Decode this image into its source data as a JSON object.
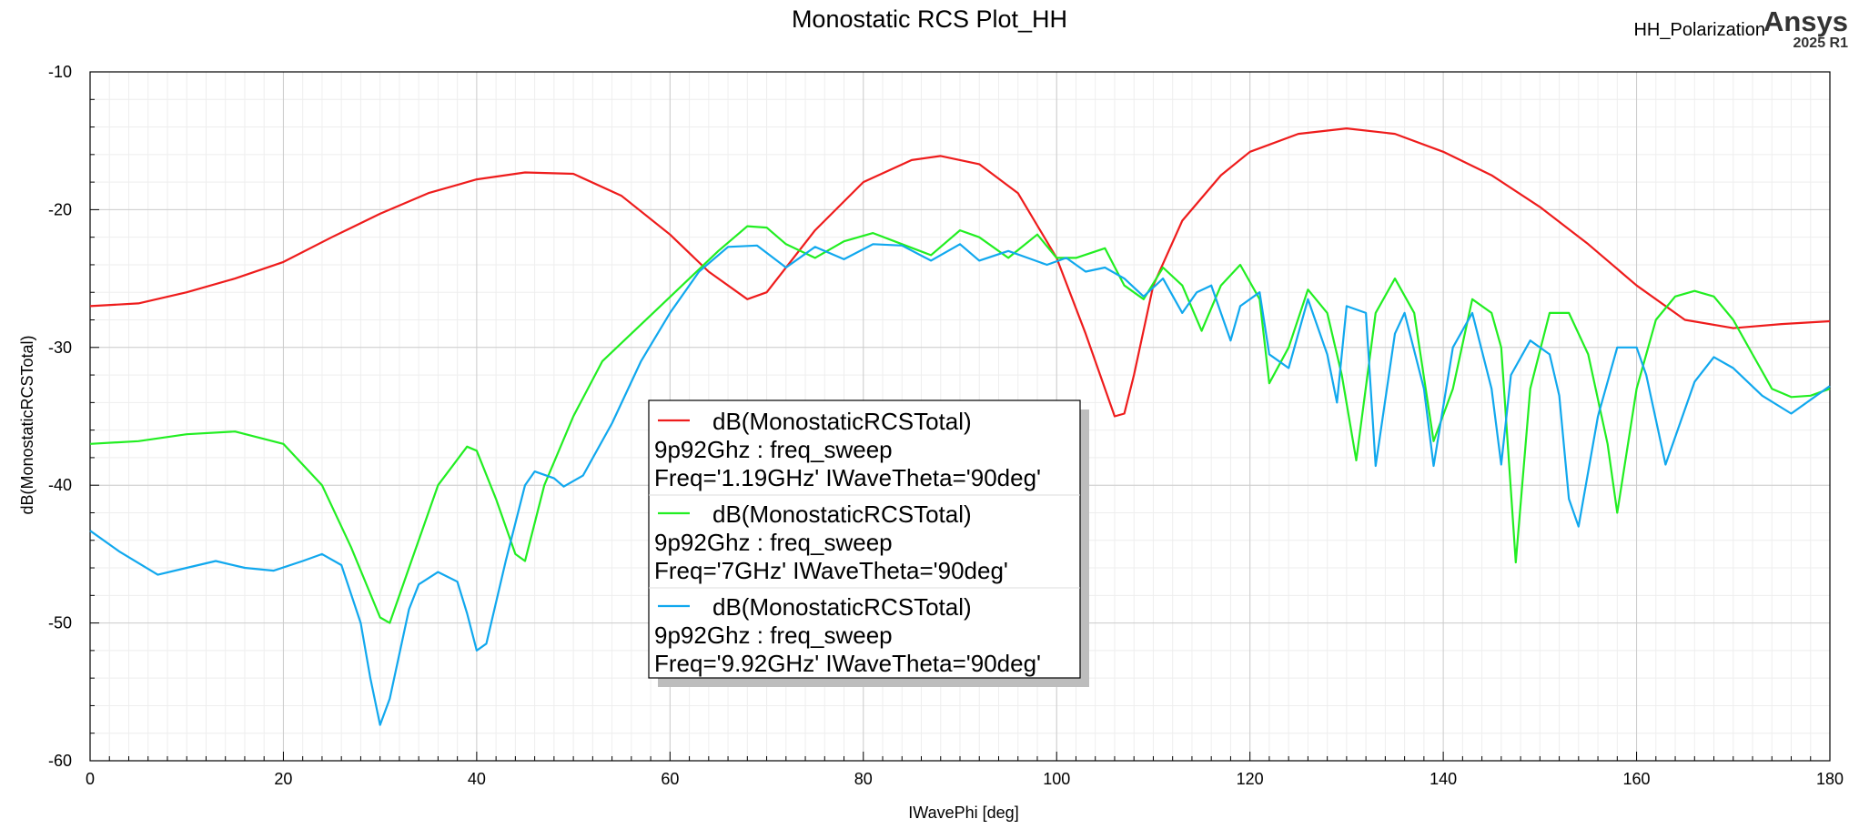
{
  "header": {
    "title": "Monostatic RCS Plot_HH",
    "tag": "HH_Polarization",
    "brand_name": "Ansys",
    "brand_version": "2025 R1"
  },
  "chart_data": {
    "type": "line",
    "title": "Monostatic RCS Plot_HH",
    "xlabel": "IWavePhi [deg]",
    "ylabel": "dB(MonostaticRCSTotal)",
    "xlim": [
      0,
      180
    ],
    "ylim": [
      -60,
      -10
    ],
    "xticks": [
      0,
      20,
      40,
      60,
      80,
      100,
      120,
      140,
      160,
      180
    ],
    "yticks": [
      -60,
      -50,
      -40,
      -30,
      -20,
      -10
    ],
    "grid": true,
    "legend_position": "center",
    "series": [
      {
        "name": "dB(MonostaticRCSTotal)",
        "legend_lines": [
          "dB(MonostaticRCSTotal)",
          "9p92Ghz : freq_sweep",
          "Freq='1.19GHz' IWaveTheta='90deg'"
        ],
        "color": "#ee1c1c",
        "x": [
          0,
          5,
          10,
          15,
          20,
          25,
          30,
          35,
          40,
          45,
          50,
          55,
          60,
          64,
          68,
          70,
          75,
          80,
          85,
          88,
          92,
          96,
          100,
          103,
          106,
          107,
          108,
          110,
          113,
          117,
          120,
          125,
          130,
          135,
          140,
          145,
          150,
          155,
          160,
          165,
          170,
          175,
          180
        ],
        "y": [
          -27.0,
          -26.8,
          -26.0,
          -25.0,
          -23.8,
          -22.0,
          -20.3,
          -18.8,
          -17.8,
          -17.3,
          -17.4,
          -19.0,
          -21.8,
          -24.5,
          -26.5,
          -26.0,
          -21.5,
          -18.0,
          -16.4,
          -16.1,
          -16.7,
          -18.8,
          -23.5,
          -29.0,
          -35.0,
          -34.8,
          -32.0,
          -25.5,
          -20.8,
          -17.5,
          -15.8,
          -14.5,
          -14.1,
          -14.5,
          -15.8,
          -17.5,
          -19.8,
          -22.5,
          -25.5,
          -28.0,
          -28.6,
          -28.3,
          -28.1
        ]
      },
      {
        "name": "dB(MonostaticRCSTotal)",
        "legend_lines": [
          "dB(MonostaticRCSTotal)",
          "9p92Ghz : freq_sweep",
          "Freq='7GHz' IWaveTheta='90deg'"
        ],
        "color": "#22ee22",
        "x": [
          0,
          5,
          10,
          15,
          20,
          24,
          27,
          30,
          31,
          33,
          36,
          39,
          40,
          42,
          44,
          45,
          47,
          50,
          53,
          56,
          59,
          62,
          65,
          68,
          70,
          72,
          75,
          78,
          81,
          84,
          87,
          90,
          92,
          95,
          98,
          100,
          102,
          105,
          107,
          109,
          111,
          113,
          115,
          117,
          119,
          121,
          122,
          124,
          126,
          128,
          129.5,
          131,
          133,
          135,
          137,
          139,
          141,
          143,
          145,
          146,
          147.5,
          149,
          151,
          153,
          155,
          157,
          158,
          160,
          162,
          164,
          166,
          168,
          170,
          172,
          174,
          176,
          178,
          180
        ],
        "y": [
          -37.0,
          -36.8,
          -36.3,
          -36.1,
          -37.0,
          -40.0,
          -44.5,
          -49.6,
          -50.0,
          -46.0,
          -40.0,
          -37.2,
          -37.5,
          -41.0,
          -45.0,
          -45.5,
          -40.0,
          -35.0,
          -31.0,
          -29.0,
          -27.0,
          -25.0,
          -23.0,
          -21.2,
          -21.3,
          -22.5,
          -23.5,
          -22.3,
          -21.7,
          -22.5,
          -23.3,
          -21.5,
          -22.0,
          -23.5,
          -21.8,
          -23.5,
          -23.5,
          -22.8,
          -25.5,
          -26.5,
          -24.2,
          -25.5,
          -28.8,
          -25.5,
          -24.0,
          -26.5,
          -32.6,
          -30.0,
          -25.8,
          -27.5,
          -32.0,
          -38.2,
          -27.5,
          -25.0,
          -27.5,
          -36.8,
          -33.0,
          -26.5,
          -27.5,
          -30.0,
          -45.6,
          -33.0,
          -27.5,
          -27.5,
          -30.5,
          -37.0,
          -42.0,
          -33.0,
          -28.0,
          -26.3,
          -25.9,
          -26.3,
          -28.0,
          -30.5,
          -33.0,
          -33.6,
          -33.5,
          -33.0
        ]
      },
      {
        "name": "dB(MonostaticRCSTotal)",
        "legend_lines": [
          "dB(MonostaticRCSTotal)",
          "9p92Ghz : freq_sweep",
          "Freq='9.92GHz' IWaveTheta='90deg'"
        ],
        "color": "#11a8ee",
        "x": [
          0,
          3,
          7,
          10,
          13,
          16,
          19,
          22,
          24,
          26,
          28,
          29,
          30,
          31,
          33,
          34,
          36,
          38,
          39,
          40,
          41,
          43,
          45,
          46,
          48,
          49,
          51,
          54,
          57,
          60,
          63,
          66,
          69,
          72,
          75,
          78,
          81,
          84,
          87,
          90,
          92,
          95,
          97,
          99,
          101,
          103,
          105,
          107,
          109,
          111,
          113,
          114.5,
          116,
          118,
          119,
          121,
          122,
          124,
          126,
          128,
          129,
          130,
          132,
          133,
          135,
          136,
          138,
          139,
          141,
          143,
          145,
          146,
          147,
          149,
          151,
          152,
          153,
          154,
          156,
          158,
          160,
          161,
          163,
          166,
          168,
          170,
          173,
          176,
          180
        ],
        "y": [
          -43.3,
          -44.8,
          -46.5,
          -46.0,
          -45.5,
          -46.0,
          -46.2,
          -45.5,
          -45.0,
          -45.8,
          -50.0,
          -54.0,
          -57.4,
          -55.5,
          -49.0,
          -47.2,
          -46.3,
          -47.0,
          -49.3,
          -52.0,
          -51.5,
          -45.5,
          -40.0,
          -39.0,
          -39.5,
          -40.1,
          -39.3,
          -35.5,
          -31.0,
          -27.5,
          -24.5,
          -22.7,
          -22.6,
          -24.2,
          -22.7,
          -23.6,
          -22.5,
          -22.6,
          -23.7,
          -22.5,
          -23.7,
          -23.0,
          -23.5,
          -24.0,
          -23.5,
          -24.5,
          -24.2,
          -25.0,
          -26.3,
          -25.0,
          -27.5,
          -26.0,
          -25.5,
          -29.5,
          -27.0,
          -26.0,
          -30.5,
          -31.5,
          -26.5,
          -30.5,
          -34.0,
          -27.0,
          -27.5,
          -38.6,
          -29.0,
          -27.5,
          -33.0,
          -38.6,
          -30.0,
          -27.5,
          -33.0,
          -38.5,
          -32.0,
          -29.5,
          -30.5,
          -33.5,
          -41.0,
          -43.0,
          -35.0,
          -30.0,
          -30.0,
          -32.0,
          -38.5,
          -32.5,
          -30.7,
          -31.5,
          -33.5,
          -34.8,
          -32.8
        ]
      }
    ]
  }
}
